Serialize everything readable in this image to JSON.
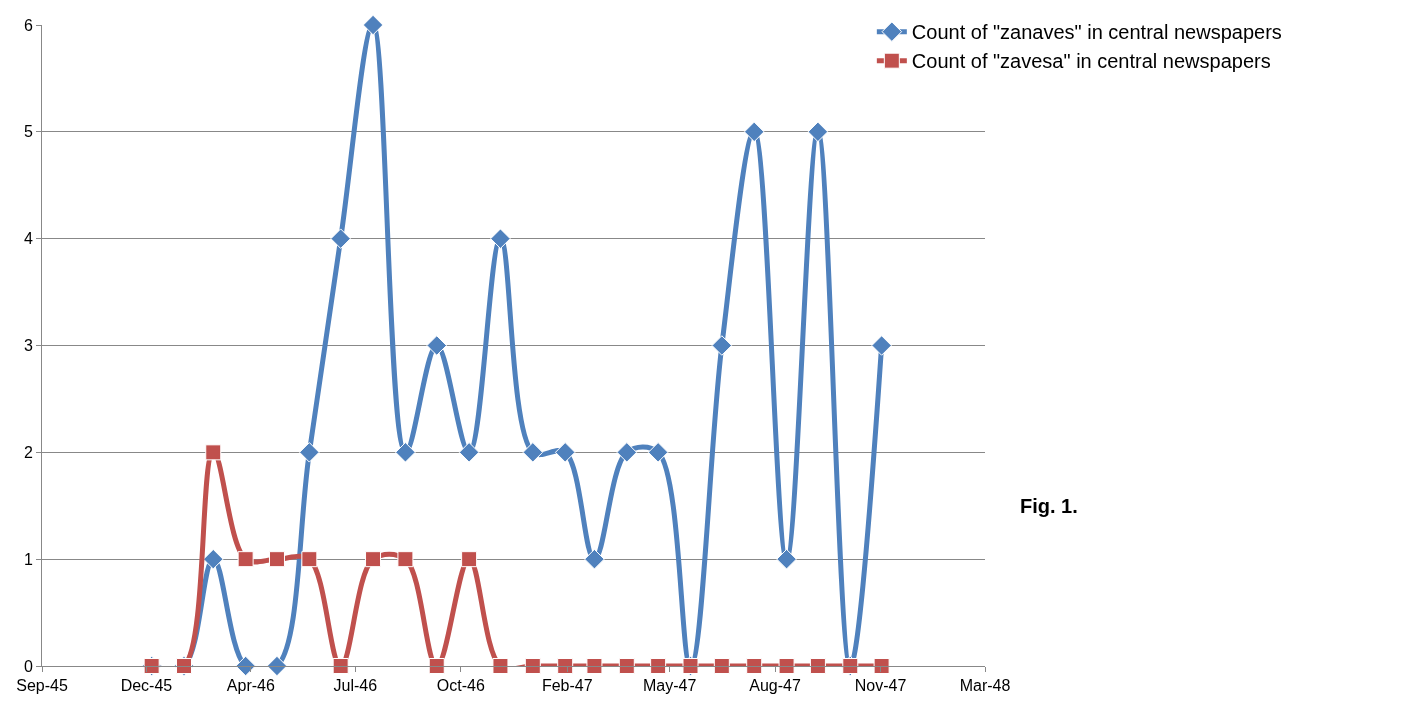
{
  "chart_data": {
    "type": "line",
    "x": [
      "1945-12-31",
      "1946-01-31",
      "1946-02-28",
      "1946-03-31",
      "1946-04-30",
      "1946-05-31",
      "1946-06-30",
      "1946-07-31",
      "1946-08-31",
      "1946-09-30",
      "1946-10-31",
      "1946-11-30",
      "1946-12-31",
      "1947-01-31",
      "1947-02-28",
      "1947-03-31",
      "1947-04-30",
      "1947-05-31",
      "1947-06-30",
      "1947-07-31",
      "1947-08-31",
      "1947-09-30",
      "1947-10-31",
      "1947-11-30"
    ],
    "series": [
      {
        "name": "Count of \"zanaves\" in central newspapers",
        "color": "#4f81bd",
        "marker": "diamond",
        "values": [
          0,
          0,
          1,
          0,
          0,
          2,
          4,
          6,
          2,
          3,
          2,
          4,
          2,
          2,
          1,
          2,
          2,
          0,
          3,
          5,
          1,
          5,
          0,
          3
        ]
      },
      {
        "name": "Count of \"zavesa\" in central newspapers",
        "color": "#c0504d",
        "marker": "square",
        "values": [
          0,
          0,
          2,
          1,
          1,
          1,
          0,
          1,
          1,
          0,
          1,
          0,
          0,
          0,
          0,
          0,
          0,
          0,
          0,
          0,
          0,
          0,
          0,
          0
        ]
      }
    ],
    "xlim": [
      "1945-09-17",
      "1948-03-08"
    ],
    "xticks": [
      {
        "value": "1945-09-17",
        "label": "Sep-45"
      },
      {
        "value": "1945-12-26",
        "label": "Dec-45"
      },
      {
        "value": "1946-04-05",
        "label": "Apr-46"
      },
      {
        "value": "1946-07-14",
        "label": "Jul-46"
      },
      {
        "value": "1946-10-23",
        "label": "Oct-46"
      },
      {
        "value": "1947-02-02",
        "label": "Feb-47"
      },
      {
        "value": "1947-05-11",
        "label": "May-47"
      },
      {
        "value": "1947-08-20",
        "label": "Aug-47"
      },
      {
        "value": "1947-11-29",
        "label": "Nov-47"
      },
      {
        "value": "1948-03-08",
        "label": "Mar-48"
      }
    ],
    "ylim": [
      0,
      6
    ],
    "yticks": [
      0,
      1,
      2,
      3,
      4,
      5,
      6
    ],
    "grid": "y",
    "legend": "top right",
    "annotations": [
      "Fig. 1."
    ]
  }
}
